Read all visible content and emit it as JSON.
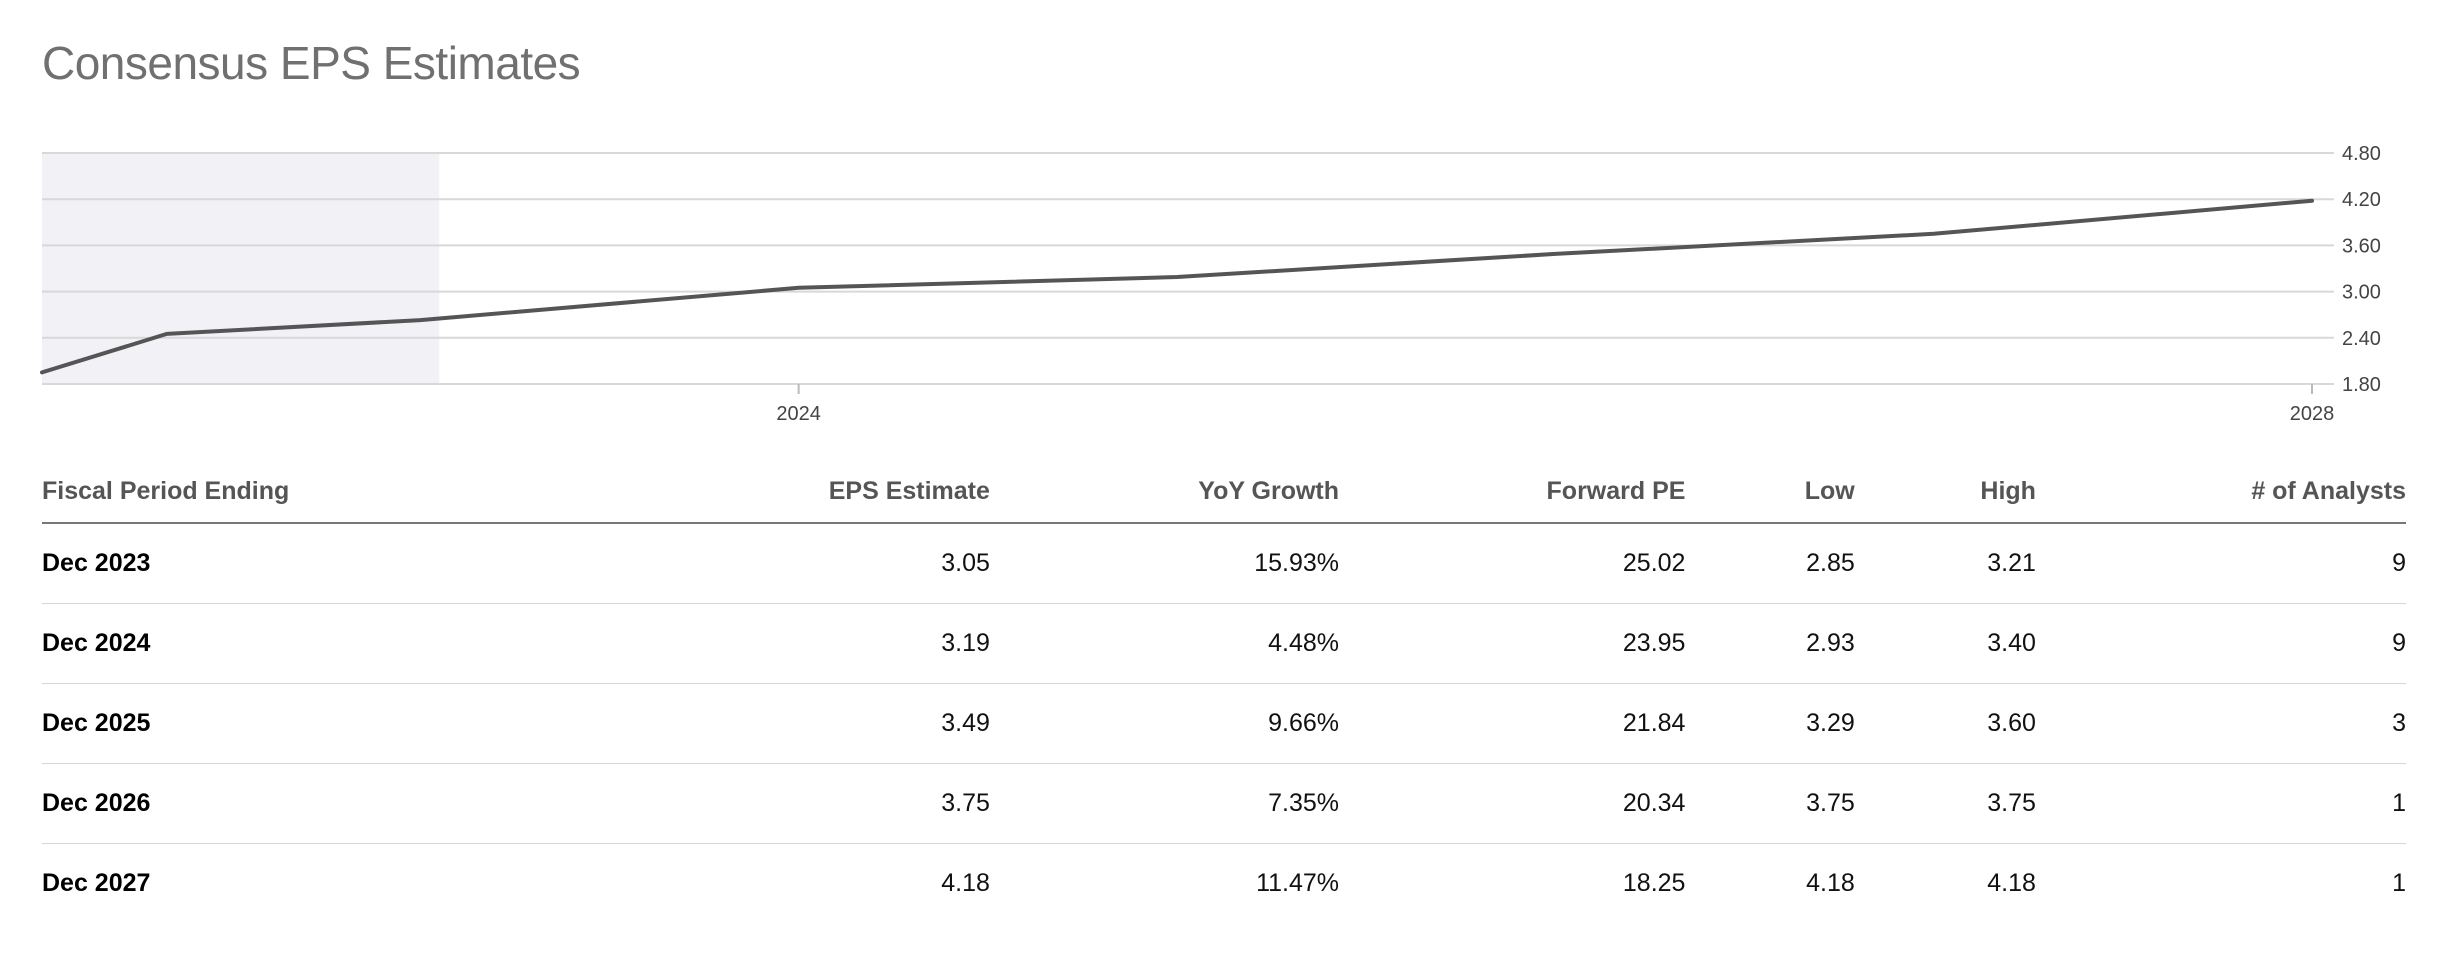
{
  "page_title": "Consensus EPS Estimates",
  "colors": {
    "line": "#555555",
    "history_shade": "#f2f2f6",
    "grid": "#d8d8d8",
    "title": "#707070"
  },
  "chart_data": {
    "type": "line",
    "title": "Consensus EPS Estimates",
    "xlabel": "",
    "ylabel": "",
    "ylim": [
      1.8,
      4.8
    ],
    "yticks": [
      "4.80",
      "4.20",
      "3.60",
      "3.00",
      "2.40",
      "1.80"
    ],
    "xticks": [
      {
        "label": "2024",
        "x": 2023.95
      },
      {
        "label": "2028",
        "x": 2027.95
      }
    ],
    "xlim": [
      2021.95,
      2027.95
    ],
    "grid": true,
    "shaded_region": {
      "from": 2021.95,
      "to": 2023.0,
      "meaning": "historical"
    },
    "series": [
      {
        "points": [
          {
            "x": 2021.95,
            "y": 1.95
          },
          {
            "x": 2022.28,
            "y": 2.45
          },
          {
            "x": 2022.95,
            "y": 2.63
          },
          {
            "x": 2023.95,
            "y": 3.05
          },
          {
            "x": 2024.95,
            "y": 3.19
          },
          {
            "x": 2025.95,
            "y": 3.49
          },
          {
            "x": 2026.95,
            "y": 3.75
          },
          {
            "x": 2027.95,
            "y": 4.18
          }
        ]
      }
    ]
  },
  "table": {
    "headers": [
      "Fiscal Period Ending",
      "EPS Estimate",
      "YoY Growth",
      "Forward PE",
      "Low",
      "High",
      "# of Analysts"
    ],
    "rows": [
      [
        "Dec 2023",
        "3.05",
        "15.93%",
        "25.02",
        "2.85",
        "3.21",
        "9"
      ],
      [
        "Dec 2024",
        "3.19",
        "4.48%",
        "23.95",
        "2.93",
        "3.40",
        "9"
      ],
      [
        "Dec 2025",
        "3.49",
        "9.66%",
        "21.84",
        "3.29",
        "3.60",
        "3"
      ],
      [
        "Dec 2026",
        "3.75",
        "7.35%",
        "20.34",
        "3.75",
        "3.75",
        "1"
      ],
      [
        "Dec 2027",
        "4.18",
        "11.47%",
        "18.25",
        "4.18",
        "4.18",
        "1"
      ]
    ]
  }
}
